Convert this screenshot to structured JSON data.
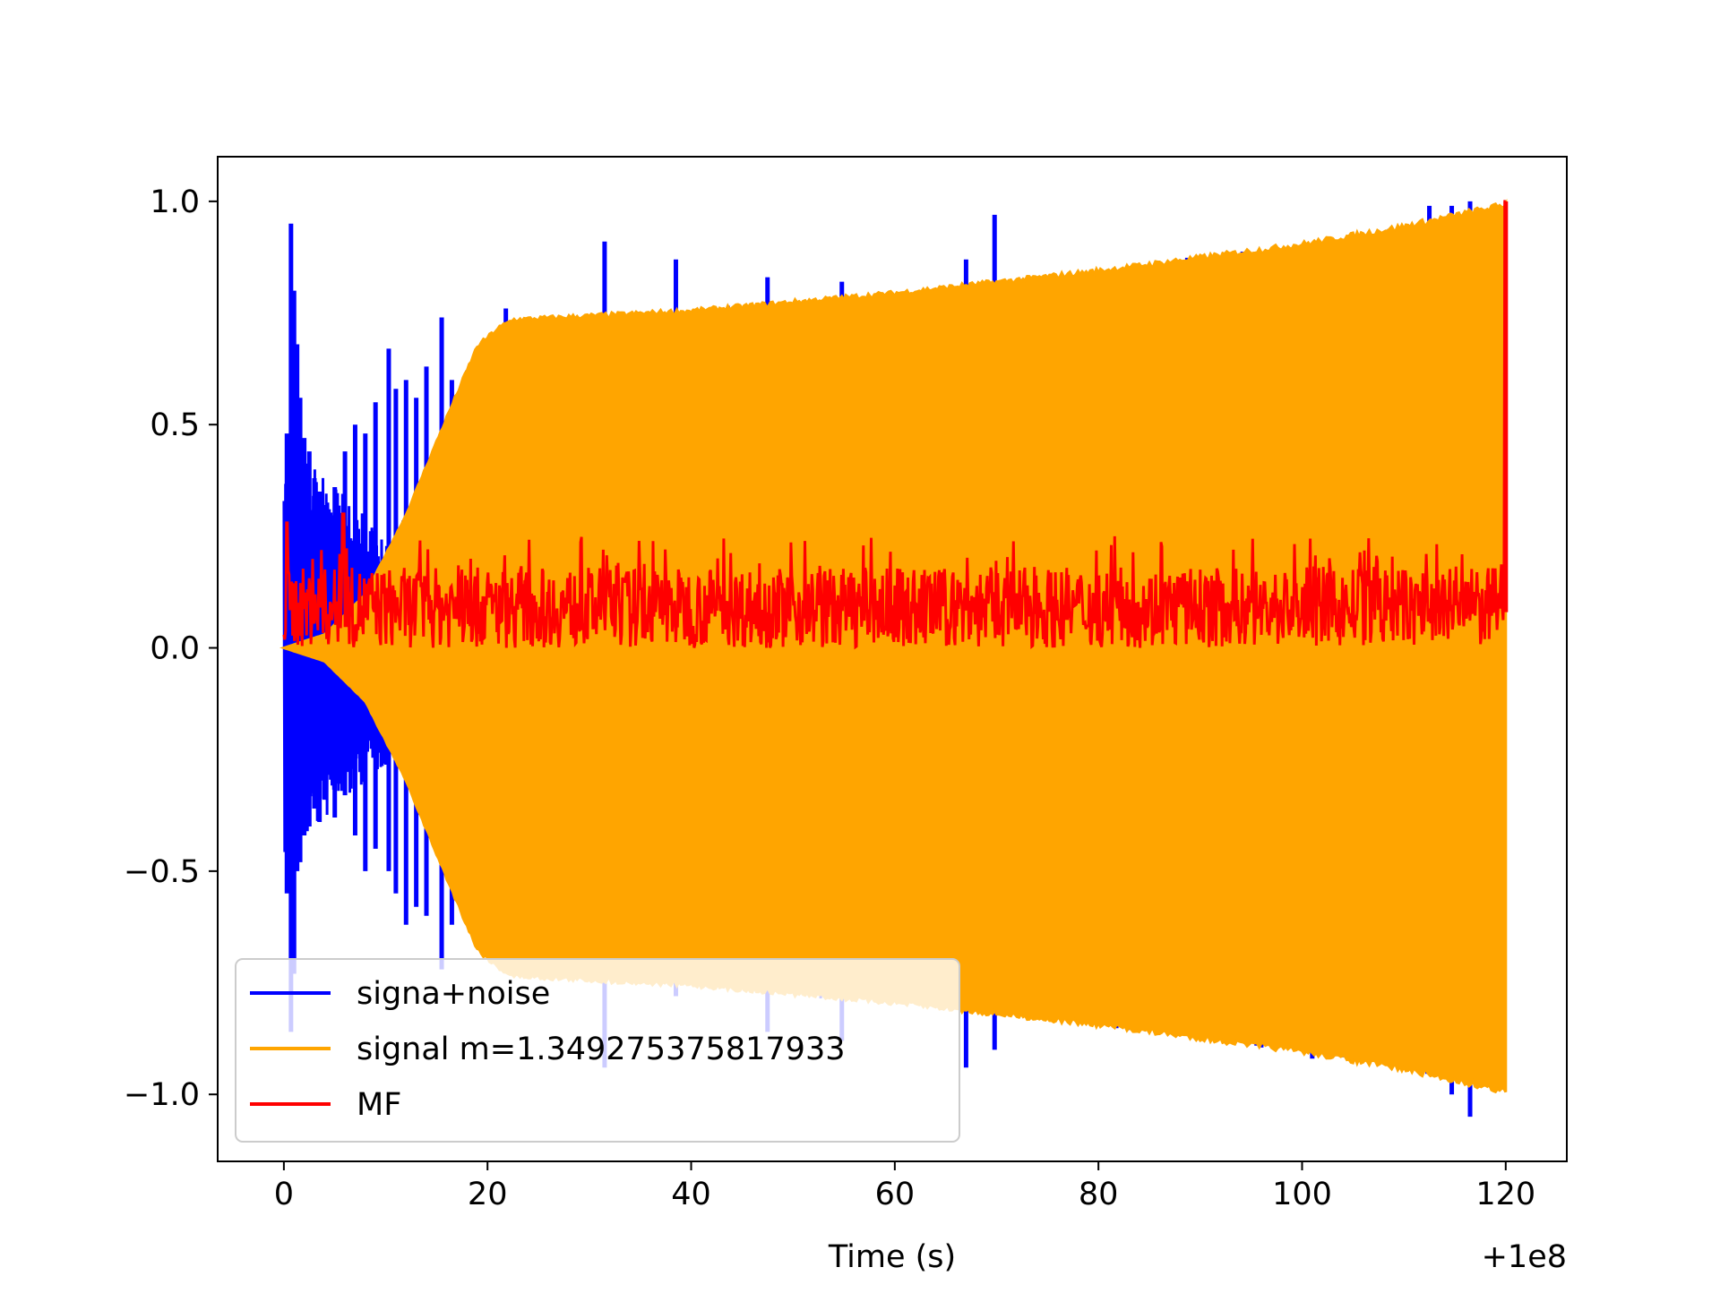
{
  "chart_data": {
    "type": "line",
    "title": "",
    "xlabel": "Time (s)",
    "ylabel": "",
    "x_offset_label": "+1e8",
    "xlim": [
      -6.5,
      126
    ],
    "ylim": [
      -1.15,
      1.1
    ],
    "x_ticks": [
      0,
      20,
      40,
      60,
      80,
      100,
      120
    ],
    "x_tick_labels": [
      "0",
      "20",
      "40",
      "60",
      "80",
      "100",
      "120"
    ],
    "y_ticks": [
      -1.0,
      -0.5,
      0.0,
      0.5,
      1.0
    ],
    "y_tick_labels": [
      "−1.0",
      "−0.5",
      "0.0",
      "0.5",
      "1.0"
    ],
    "grid": false,
    "legend_position": "lower-left",
    "series": [
      {
        "name": "signa+noise",
        "color": "#0000ff",
        "x_range": [
          0,
          120
        ],
        "spikes": [
          [
            0.3,
            0.48,
            -0.55
          ],
          [
            0.7,
            0.95,
            -0.86
          ],
          [
            1.0,
            0.8,
            -0.73
          ],
          [
            1.3,
            0.68,
            -0.5
          ],
          [
            1.6,
            0.56,
            -0.48
          ],
          [
            2.0,
            0.47,
            -0.42
          ],
          [
            2.5,
            0.44,
            -0.4
          ],
          [
            3.0,
            0.38,
            -0.36
          ],
          [
            3.5,
            0.35,
            -0.39
          ],
          [
            4.0,
            0.32,
            -0.34
          ],
          [
            5.0,
            0.36,
            -0.38
          ],
          [
            6.0,
            0.44,
            -0.33
          ],
          [
            7.0,
            0.5,
            -0.42
          ],
          [
            8.0,
            0.48,
            -0.5
          ],
          [
            9.0,
            0.55,
            -0.45
          ],
          [
            10.3,
            0.67,
            -0.5
          ],
          [
            11.0,
            0.58,
            -0.55
          ],
          [
            12.0,
            0.6,
            -0.62
          ],
          [
            13.0,
            0.56,
            -0.58
          ],
          [
            14.0,
            0.63,
            -0.6
          ],
          [
            15.5,
            0.74,
            -0.72
          ],
          [
            16.5,
            0.6,
            -0.62
          ],
          [
            21.8,
            0.76,
            -0.71
          ],
          [
            31.5,
            0.91,
            -0.94
          ],
          [
            38.5,
            0.87,
            -0.78
          ],
          [
            47.5,
            0.83,
            -0.86
          ],
          [
            54.8,
            0.82,
            -0.88
          ],
          [
            67.0,
            0.87,
            -0.94
          ],
          [
            69.8,
            0.97,
            -0.9
          ],
          [
            101.0,
            0.9,
            -0.92
          ],
          [
            112.5,
            0.99,
            -0.94
          ],
          [
            114.7,
            0.99,
            -1.0
          ],
          [
            116.5,
            1.0,
            -1.05
          ]
        ]
      },
      {
        "name": "signal m=1.349275375817933",
        "color": "#ffa500",
        "x_range": [
          0,
          120
        ],
        "envelope": [
          [
            0,
            0.0
          ],
          [
            4,
            0.03
          ],
          [
            8,
            0.12
          ],
          [
            12,
            0.3
          ],
          [
            16,
            0.52
          ],
          [
            19,
            0.68
          ],
          [
            21,
            0.72
          ],
          [
            22.5,
            0.74
          ],
          [
            40,
            0.76
          ],
          [
            60,
            0.8
          ],
          [
            80,
            0.85
          ],
          [
            100,
            0.91
          ],
          [
            110,
            0.95
          ],
          [
            118,
            0.99
          ],
          [
            120,
            1.0
          ]
        ]
      },
      {
        "name": "MF",
        "color": "#ff0000",
        "x_range": [
          0,
          120
        ],
        "baseline": 0.08,
        "noise_range": [
          0.0,
          0.18
        ],
        "peaks": [
          [
            0.3,
            0.28
          ],
          [
            5.8,
            0.3
          ],
          [
            120.0,
            1.0
          ]
        ]
      }
    ]
  }
}
